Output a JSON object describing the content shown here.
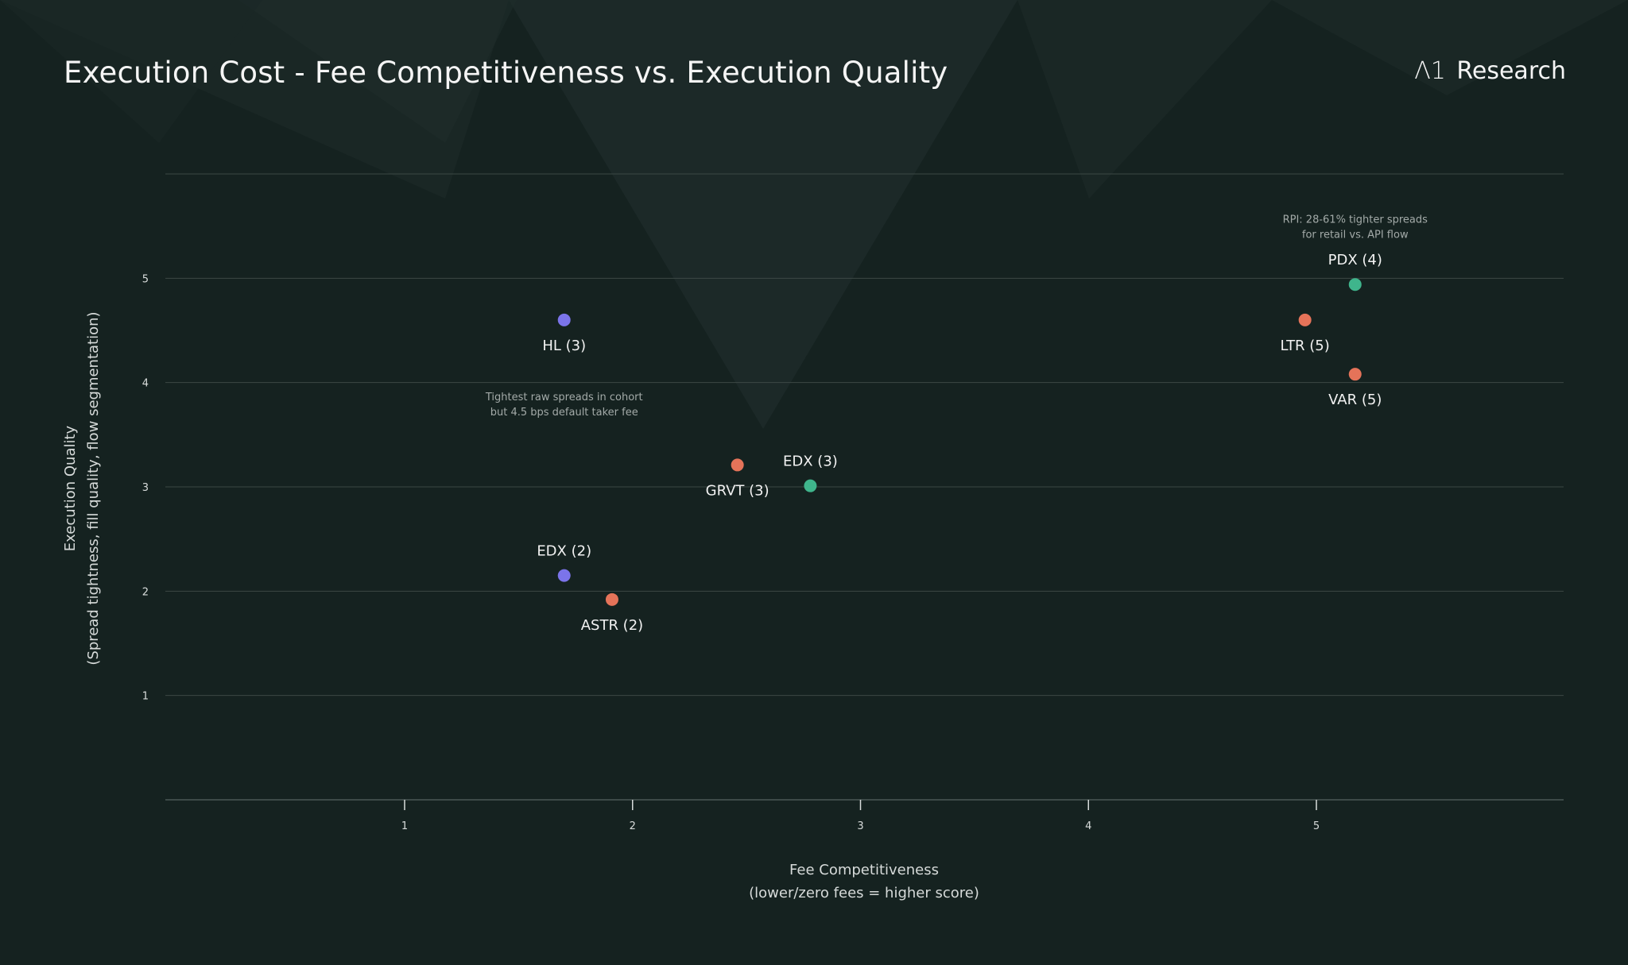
{
  "header": {
    "title": "Execution Cost - Fee Competitiveness vs. Execution Quality",
    "brand_mark": "Λ1",
    "brand_name": "Research"
  },
  "colors": {
    "background": "#152220",
    "grid": "#3c4845",
    "purple": "#7b74ea",
    "orange": "#e57359",
    "green": "#3fb58c"
  },
  "chart_data": {
    "type": "scatter",
    "title": "Execution Cost - Fee Competitiveness vs. Execution Quality",
    "xlabel_line1": "Fee Competitiveness",
    "xlabel_line2": "(lower/zero fees = higher score)",
    "ylabel_line1": "Execution Quality",
    "ylabel_line2": "(Spread tightness, fill quality, flow segmentation)",
    "xlim": [
      0,
      6
    ],
    "ylim": [
      0,
      6
    ],
    "x_ticks": [
      "1",
      "2",
      "3",
      "4",
      "5"
    ],
    "y_ticks": [
      "1",
      "2",
      "3",
      "4",
      "5"
    ],
    "grid": true,
    "points": [
      {
        "label": "HL (3)",
        "x": 1.7,
        "y": 4.6,
        "color": "purple",
        "label_pos": "below"
      },
      {
        "label": "EDX (2)",
        "x": 1.7,
        "y": 2.15,
        "color": "purple",
        "label_pos": "above"
      },
      {
        "label": "ASTR (2)",
        "x": 1.91,
        "y": 1.92,
        "color": "orange",
        "label_pos": "below"
      },
      {
        "label": "GRVT (3)",
        "x": 2.46,
        "y": 3.21,
        "color": "orange",
        "label_pos": "below"
      },
      {
        "label": "EDX (3)",
        "x": 2.78,
        "y": 3.01,
        "color": "green",
        "label_pos": "above"
      },
      {
        "label": "LTR (5)",
        "x": 4.95,
        "y": 4.6,
        "color": "orange",
        "label_pos": "below"
      },
      {
        "label": "PDX (4)",
        "x": 5.17,
        "y": 4.94,
        "color": "green",
        "label_pos": "above"
      },
      {
        "label": "VAR (5)",
        "x": 5.17,
        "y": 4.08,
        "color": "orange",
        "label_pos": "below"
      }
    ],
    "annotations": [
      {
        "lines": [
          "Tightest raw spreads in cohort",
          "but 4.5 bps default taker fee"
        ],
        "x": 1.7,
        "y": 3.83
      },
      {
        "lines": [
          "RPI: 28-61% tighter spreads",
          "for retail vs. API flow"
        ],
        "x": 5.17,
        "y": 5.53
      }
    ]
  }
}
